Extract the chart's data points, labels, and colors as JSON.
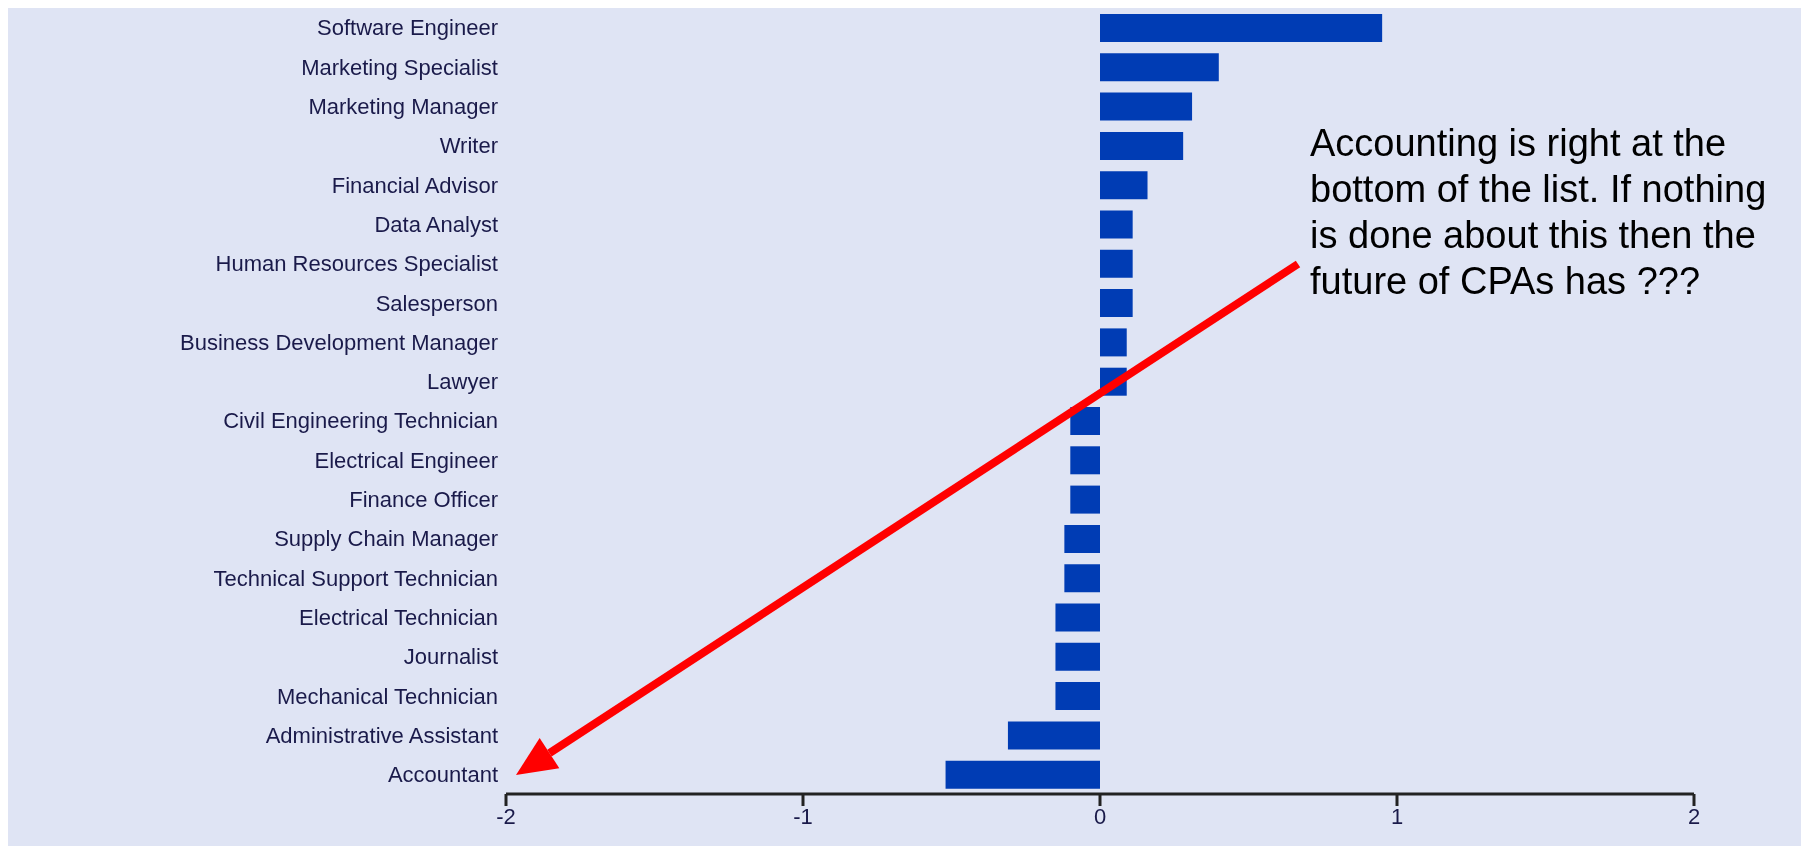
{
  "chart_data": {
    "type": "bar",
    "orientation": "horizontal",
    "categories": [
      "Software Engineer",
      "Marketing Specialist",
      "Marketing Manager",
      "Writer",
      "Financial Advisor",
      "Data Analyst",
      "Human Resources Specialist",
      "Salesperson",
      "Business Development Manager",
      "Lawyer",
      "Civil Engineering Technician",
      "Electrical Engineer",
      "Finance Officer",
      "Supply Chain Manager",
      "Technical Support Technician",
      "Electrical Technician",
      "Journalist",
      "Mechanical Technician",
      "Administrative Assistant",
      "Accountant"
    ],
    "values": [
      0.95,
      0.4,
      0.31,
      0.28,
      0.16,
      0.11,
      0.11,
      0.11,
      0.09,
      0.09,
      -0.1,
      -0.1,
      -0.1,
      -0.12,
      -0.12,
      -0.15,
      -0.15,
      -0.15,
      -0.31,
      -0.52
    ],
    "color": "#003cb4",
    "xlim": [
      -2,
      2
    ],
    "xticks": [
      -2,
      -1,
      0,
      1,
      2
    ],
    "annotations": [
      "Accounting is right at the bottom of the list. If nothing is done about this then the future of CPAs has ???"
    ]
  }
}
